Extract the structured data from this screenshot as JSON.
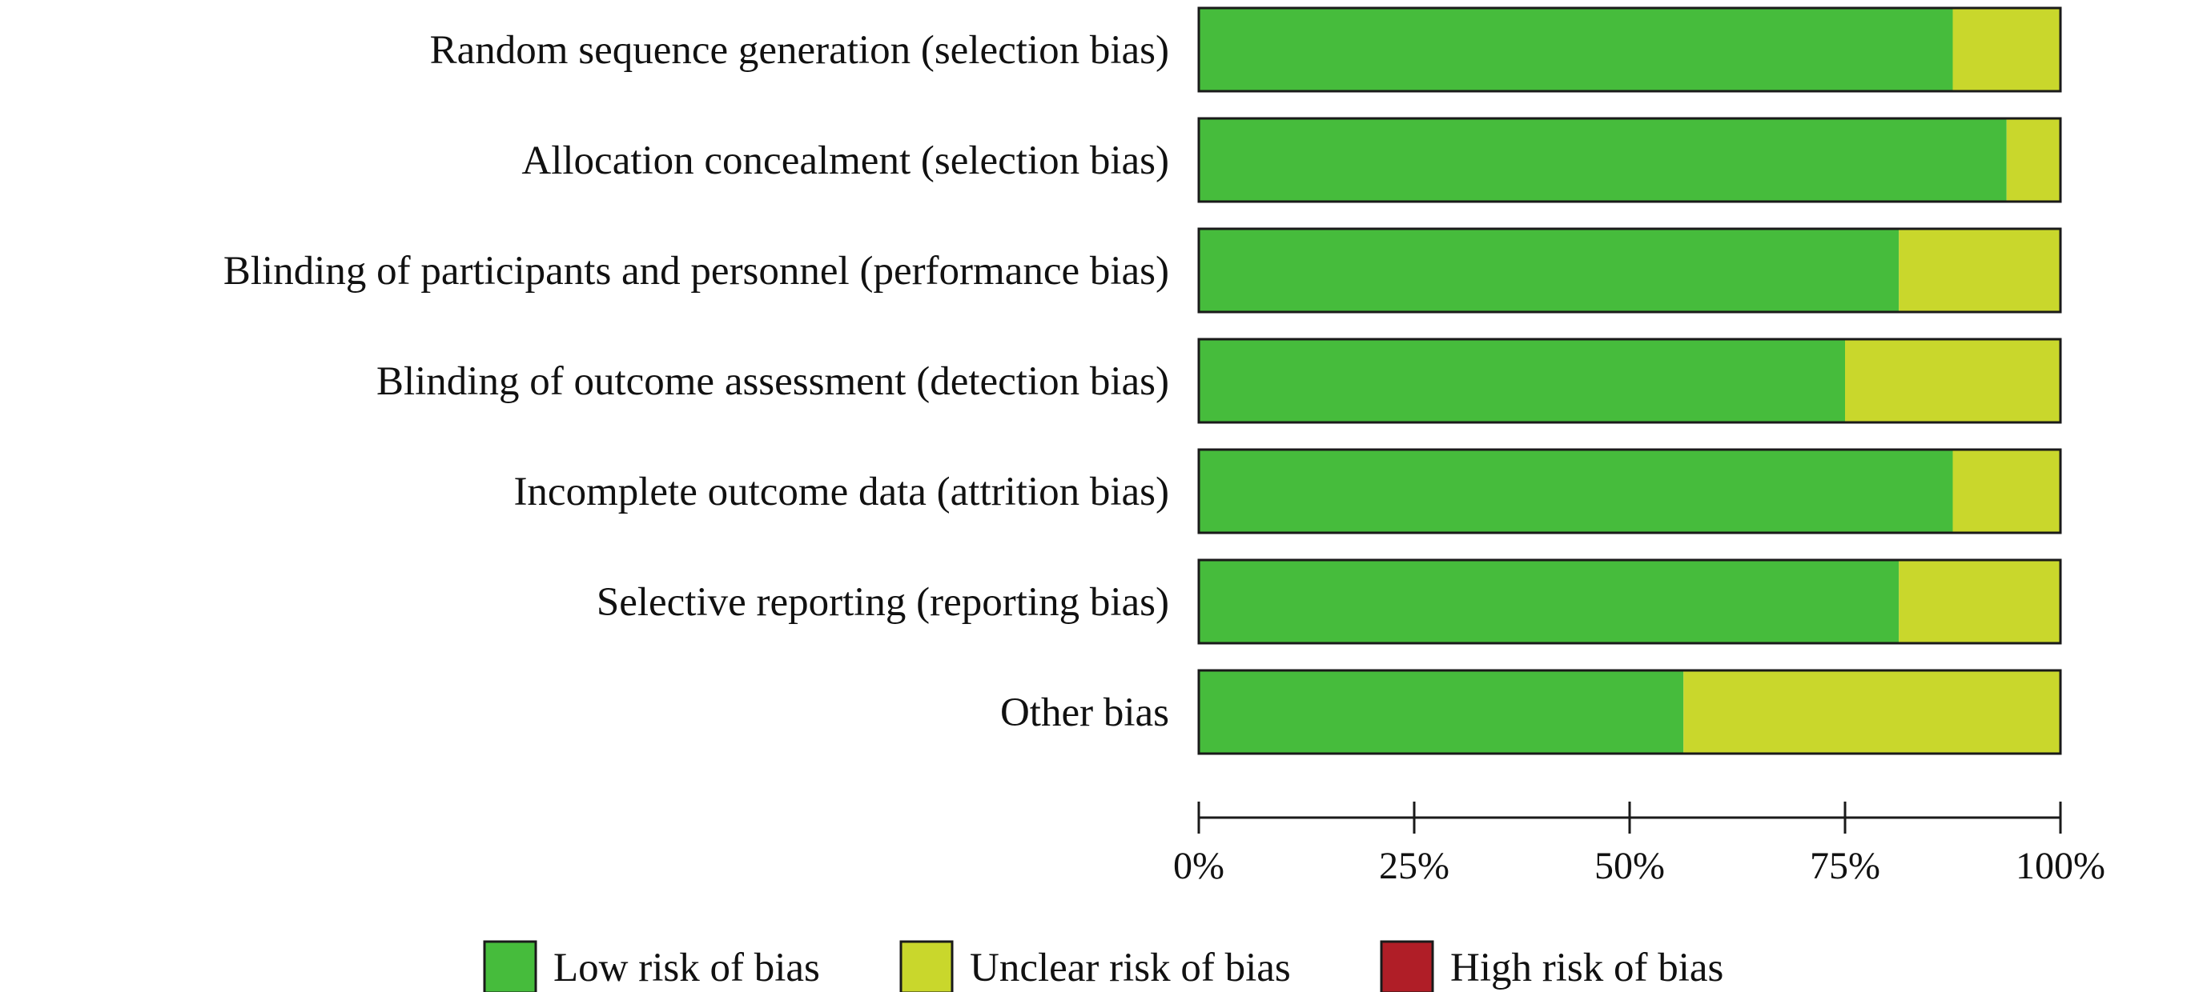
{
  "chart_data": {
    "type": "bar",
    "stacked": true,
    "orientation": "horizontal",
    "categories": [
      "Random sequence generation (selection bias)",
      "Allocation concealment (selection bias)",
      "Blinding of participants and personnel (performance bias)",
      "Blinding of outcome assessment (detection bias)",
      "Incomplete outcome data (attrition bias)",
      "Selective reporting (reporting bias)",
      "Other bias"
    ],
    "series": [
      {
        "name": "Low risk of bias",
        "color": "#46bc3c",
        "values": [
          87.5,
          93.75,
          81.25,
          75,
          87.5,
          81.25,
          56.25
        ]
      },
      {
        "name": "Unclear risk of bias",
        "color": "#c9d72c",
        "values": [
          12.5,
          6.25,
          18.75,
          25,
          12.5,
          18.75,
          43.75
        ]
      },
      {
        "name": "High risk of bias",
        "color": "#b01e27",
        "values": [
          0,
          0,
          0,
          0,
          0,
          0,
          0
        ]
      }
    ],
    "xlim": [
      0,
      100
    ],
    "xticks": [
      {
        "value": 0,
        "label": "0%"
      },
      {
        "value": 25,
        "label": "25%"
      },
      {
        "value": 50,
        "label": "50%"
      },
      {
        "value": 75,
        "label": "75%"
      },
      {
        "value": 100,
        "label": "100%"
      }
    ],
    "legend_position": "bottom",
    "grid": false
  }
}
